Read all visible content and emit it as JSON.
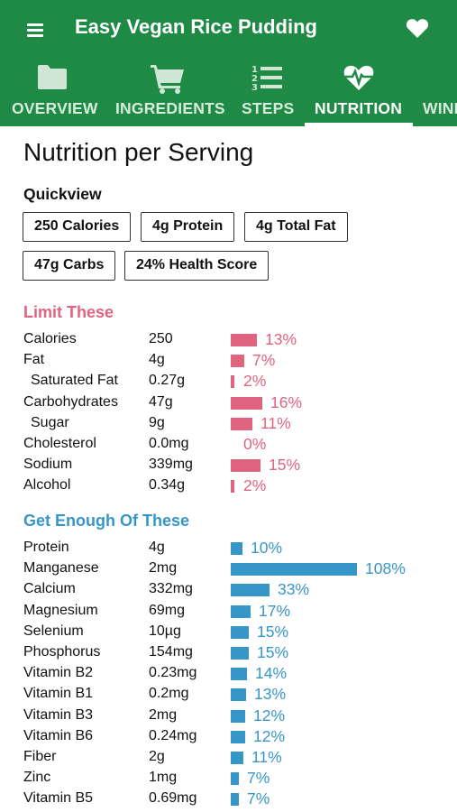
{
  "header": {
    "title": "Easy Vegan Rice Pudding"
  },
  "tabs": [
    {
      "label": "OVERVIEW",
      "icon": "folder-icon"
    },
    {
      "label": "INGREDIENTS",
      "icon": "cart-icon"
    },
    {
      "label": "STEPS",
      "icon": "numbered-list-icon"
    },
    {
      "label": "NUTRITION",
      "icon": "heartbeat-icon",
      "active": true
    },
    {
      "label": "WINE",
      "icon": "wine-icon"
    }
  ],
  "page": {
    "title": "Nutrition per Serving"
  },
  "quickview": {
    "title": "Quickview",
    "chips": [
      "250 Calories",
      "4g Protein",
      "4g Total Fat",
      "47g Carbs",
      "24% Health Score"
    ]
  },
  "limit": {
    "title": "Limit These",
    "color": "#e0637f",
    "items": [
      {
        "name": "Calories",
        "amount": "250",
        "percent": "13%",
        "value": 13,
        "indent": false
      },
      {
        "name": "Fat",
        "amount": "4g",
        "percent": "7%",
        "value": 7,
        "indent": false
      },
      {
        "name": "Saturated Fat",
        "amount": "0.27g",
        "percent": "2%",
        "value": 2,
        "indent": true
      },
      {
        "name": "Carbohydrates",
        "amount": "47g",
        "percent": "16%",
        "value": 16,
        "indent": false
      },
      {
        "name": "Sugar",
        "amount": "9g",
        "percent": "11%",
        "value": 11,
        "indent": true
      },
      {
        "name": "Cholesterol",
        "amount": "0.0mg",
        "percent": "0%",
        "value": 0,
        "indent": false
      },
      {
        "name": "Sodium",
        "amount": "339mg",
        "percent": "15%",
        "value": 15,
        "indent": false
      },
      {
        "name": "Alcohol",
        "amount": "0.34g",
        "percent": "2%",
        "value": 2,
        "indent": false
      }
    ]
  },
  "enough": {
    "title": "Get Enough Of These",
    "color": "#3796c8",
    "items": [
      {
        "name": "Protein",
        "amount": "4g",
        "percent": "10%",
        "value": 10
      },
      {
        "name": "Manganese",
        "amount": "2mg",
        "percent": "108%",
        "value": 108
      },
      {
        "name": "Calcium",
        "amount": "332mg",
        "percent": "33%",
        "value": 33
      },
      {
        "name": "Magnesium",
        "amount": "69mg",
        "percent": "17%",
        "value": 17
      },
      {
        "name": "Selenium",
        "amount": "10µg",
        "percent": "15%",
        "value": 15
      },
      {
        "name": "Phosphorus",
        "amount": "154mg",
        "percent": "15%",
        "value": 15
      },
      {
        "name": "Vitamin B2",
        "amount": "0.23mg",
        "percent": "14%",
        "value": 14
      },
      {
        "name": "Vitamin B1",
        "amount": "0.2mg",
        "percent": "13%",
        "value": 13
      },
      {
        "name": "Vitamin B3",
        "amount": "2mg",
        "percent": "12%",
        "value": 12
      },
      {
        "name": "Vitamin B6",
        "amount": "0.24mg",
        "percent": "12%",
        "value": 12
      },
      {
        "name": "Fiber",
        "amount": "2g",
        "percent": "11%",
        "value": 11
      },
      {
        "name": "Zinc",
        "amount": "1mg",
        "percent": "7%",
        "value": 7
      },
      {
        "name": "Vitamin B5",
        "amount": "0.69mg",
        "percent": "7%",
        "value": 7
      }
    ]
  }
}
